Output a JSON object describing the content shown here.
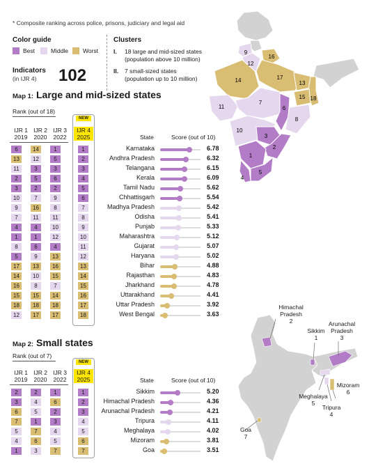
{
  "footnote": "* Composite ranking across police, prisons, judiciary and legal aid",
  "colors": {
    "best": "#b27cc6",
    "middle": "#e4d7ee",
    "worst": "#d9bd73",
    "new_badge": "#ffe600",
    "map_gray": "#d2d2d2"
  },
  "color_guide": {
    "title": "Color guide",
    "items": [
      {
        "label": "Best",
        "cls": "best"
      },
      {
        "label": "Middle",
        "cls": "middle"
      },
      {
        "label": "Worst",
        "cls": "worst"
      }
    ]
  },
  "indicators": {
    "title": "Indicators",
    "subtitle": "(in IJR 4)",
    "count": "102"
  },
  "clusters": {
    "title": "Clusters",
    "items": [
      {
        "num": "I.",
        "line1": "18 large and mid-sized states",
        "line2": "(population above 10 million)"
      },
      {
        "num": "II.",
        "line1": "7 small-sized states",
        "line2": "(population up to 10 million)"
      }
    ]
  },
  "map1": {
    "prefix": "Map 1:",
    "title": "Large and mid-sized states",
    "rank_label": "Rank (out of 18)",
    "new_label": "NEW",
    "columns": [
      {
        "l1": "IJR 1",
        "l2": "2019"
      },
      {
        "l1": "IJR 2",
        "l2": "2020"
      },
      {
        "l1": "IJR 3",
        "l2": "2022"
      },
      {
        "l1": "IJR 4",
        "l2": "2025"
      }
    ],
    "state_header": "State",
    "score_header": "Score (out of 10)",
    "rows": [
      {
        "state": "Karnataka",
        "r": [
          "6",
          "14",
          "1",
          "1"
        ],
        "c": [
          "best",
          "worst",
          "best",
          "best"
        ],
        "score": "6.78",
        "v": 6.78
      },
      {
        "state": "Andhra Pradesh",
        "r": [
          "13",
          "12",
          "5",
          "2"
        ],
        "c": [
          "worst",
          "middle",
          "best",
          "best"
        ],
        "score": "6.32",
        "v": 6.32
      },
      {
        "state": "Telangana",
        "r": [
          "11",
          "3",
          "3",
          "3"
        ],
        "c": [
          "middle",
          "best",
          "best",
          "best"
        ],
        "score": "6.15",
        "v": 6.15
      },
      {
        "state": "Kerala",
        "r": [
          "2",
          "5",
          "6",
          "4"
        ],
        "c": [
          "best",
          "best",
          "best",
          "best"
        ],
        "score": "6.09",
        "v": 6.09
      },
      {
        "state": "Tamil Nadu",
        "r": [
          "3",
          "2",
          "2",
          "5"
        ],
        "c": [
          "best",
          "best",
          "best",
          "best"
        ],
        "score": "5.62",
        "v": 5.62
      },
      {
        "state": "Chhattisgarh",
        "r": [
          "10",
          "7",
          "9",
          "6"
        ],
        "c": [
          "middle",
          "middle",
          "middle",
          "best"
        ],
        "score": "5.54",
        "v": 5.54
      },
      {
        "state": "Madhya Pradesh",
        "r": [
          "9",
          "16",
          "8",
          "7"
        ],
        "c": [
          "middle",
          "worst",
          "middle",
          "middle"
        ],
        "score": "5.42",
        "v": 5.42
      },
      {
        "state": "Odisha",
        "r": [
          "7",
          "11",
          "11",
          "8"
        ],
        "c": [
          "middle",
          "middle",
          "middle",
          "middle"
        ],
        "score": "5.41",
        "v": 5.41
      },
      {
        "state": "Punjab",
        "r": [
          "4",
          "4",
          "10",
          "9"
        ],
        "c": [
          "best",
          "best",
          "middle",
          "middle"
        ],
        "score": "5.33",
        "v": 5.33
      },
      {
        "state": "Maharashtra",
        "r": [
          "1",
          "1",
          "12",
          "10"
        ],
        "c": [
          "best",
          "best",
          "middle",
          "middle"
        ],
        "score": "5.12",
        "v": 5.12
      },
      {
        "state": "Gujarat",
        "r": [
          "8",
          "6",
          "4",
          "11"
        ],
        "c": [
          "middle",
          "best",
          "best",
          "middle"
        ],
        "score": "5.07",
        "v": 5.07
      },
      {
        "state": "Haryana",
        "r": [
          "5",
          "9",
          "13",
          "12"
        ],
        "c": [
          "best",
          "middle",
          "worst",
          "middle"
        ],
        "score": "5.02",
        "v": 5.02
      },
      {
        "state": "Bihar",
        "r": [
          "17",
          "13",
          "16",
          "13"
        ],
        "c": [
          "worst",
          "worst",
          "worst",
          "worst"
        ],
        "score": "4.88",
        "v": 4.88
      },
      {
        "state": "Rajasthan",
        "r": [
          "14",
          "10",
          "15",
          "14"
        ],
        "c": [
          "worst",
          "middle",
          "worst",
          "worst"
        ],
        "score": "4.83",
        "v": 4.83
      },
      {
        "state": "Jharkhand",
        "r": [
          "16",
          "8",
          "7",
          "15"
        ],
        "c": [
          "worst",
          "middle",
          "middle",
          "worst"
        ],
        "score": "4.78",
        "v": 4.78
      },
      {
        "state": "Uttarakhand",
        "r": [
          "15",
          "15",
          "14",
          "16"
        ],
        "c": [
          "worst",
          "worst",
          "worst",
          "worst"
        ],
        "score": "4.41",
        "v": 4.41
      },
      {
        "state": "Uttar Pradesh",
        "r": [
          "18",
          "18",
          "18",
          "17"
        ],
        "c": [
          "worst",
          "worst",
          "worst",
          "worst"
        ],
        "score": "3.92",
        "v": 3.92
      },
      {
        "state": "West Bengal",
        "r": [
          "12",
          "17",
          "17",
          "18"
        ],
        "c": [
          "middle",
          "worst",
          "worst",
          "worst"
        ],
        "score": "3.63",
        "v": 3.63
      }
    ]
  },
  "map2": {
    "prefix": "Map 2:",
    "title": "Small states",
    "rank_label": "Rank (out of 7)",
    "new_label": "NEW",
    "columns": [
      {
        "l1": "IJR 1",
        "l2": "2019"
      },
      {
        "l1": "IJR 2",
        "l2": "2020"
      },
      {
        "l1": "IJR 3",
        "l2": "2022"
      },
      {
        "l1": "IJR 4",
        "l2": "2025"
      }
    ],
    "state_header": "State",
    "score_header": "Score (out of 10)",
    "rows": [
      {
        "state": "Sikkim",
        "r": [
          "2",
          "2",
          "1",
          "1"
        ],
        "c": [
          "best",
          "best",
          "best",
          "best"
        ],
        "score": "5.20",
        "v": 5.2
      },
      {
        "state": "Himachal Pradesh",
        "r": [
          "3",
          "4",
          "6",
          "2"
        ],
        "c": [
          "best",
          "middle",
          "worst",
          "best"
        ],
        "score": "4.36",
        "v": 4.36
      },
      {
        "state": "Arunachal Pradesh",
        "r": [
          "6",
          "5",
          "2",
          "3"
        ],
        "c": [
          "worst",
          "middle",
          "best",
          "best"
        ],
        "score": "4.21",
        "v": 4.21
      },
      {
        "state": "Tripura",
        "r": [
          "7",
          "1",
          "3",
          "4"
        ],
        "c": [
          "worst",
          "best",
          "best",
          "middle"
        ],
        "score": "4.11",
        "v": 4.11
      },
      {
        "state": "Meghalaya",
        "r": [
          "5",
          "7",
          "4",
          "5"
        ],
        "c": [
          "middle",
          "worst",
          "middle",
          "middle"
        ],
        "score": "4.02",
        "v": 4.02
      },
      {
        "state": "Mizoram",
        "r": [
          "4",
          "6",
          "5",
          "6"
        ],
        "c": [
          "middle",
          "worst",
          "middle",
          "worst"
        ],
        "score": "3.81",
        "v": 3.81
      },
      {
        "state": "Goa",
        "r": [
          "1",
          "3",
          "7",
          "7"
        ],
        "c": [
          "best",
          "middle",
          "worst",
          "worst"
        ],
        "score": "3.51",
        "v": 3.51
      }
    ]
  },
  "map1_labels": [
    "9",
    "16",
    "12",
    "14",
    "17",
    "13",
    "7",
    "15",
    "18",
    "11",
    "6",
    "8",
    "10",
    "3",
    "1",
    "2",
    "5",
    "4"
  ],
  "map2_callouts": [
    {
      "name": "Himachal Pradesh",
      "rank": "2"
    },
    {
      "name": "Sikkim",
      "rank": "1"
    },
    {
      "name": "Arunachal Pradesh",
      "rank": "3"
    },
    {
      "name": "Meghalaya",
      "rank": "5"
    },
    {
      "name": "Mizoram",
      "rank": "6"
    },
    {
      "name": "Tripura",
      "rank": "4"
    },
    {
      "name": "Goa",
      "rank": "7"
    }
  ]
}
